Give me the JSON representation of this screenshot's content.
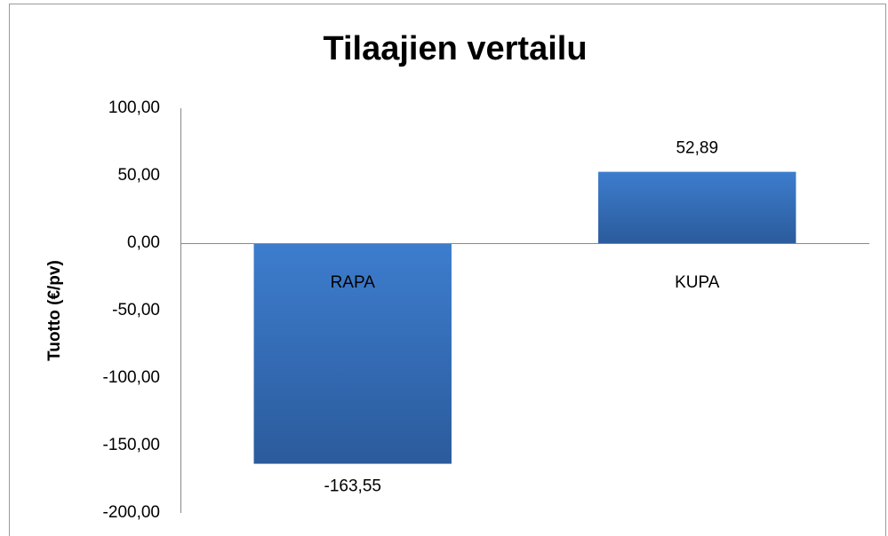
{
  "chart_data": {
    "type": "bar",
    "title": "Tilaajien vertailu",
    "y_label": "Tuotto (€/pv)",
    "categories": [
      "RAPA",
      "KUPA"
    ],
    "values": [
      -163.55,
      52.89
    ],
    "value_labels": [
      "-163,55",
      "52,89"
    ],
    "color": "#3d7dce",
    "ylim": [
      -200,
      100
    ],
    "yticks": [
      {
        "value": -200,
        "label": "-200,00"
      },
      {
        "value": -150,
        "label": "-150,00"
      },
      {
        "value": -100,
        "label": "-100,00"
      },
      {
        "value": -50,
        "label": "-50,00"
      },
      {
        "value": 0,
        "label": "0,00"
      },
      {
        "value": 50,
        "label": "50,00"
      },
      {
        "value": 100,
        "label": "100,00"
      }
    ],
    "grid": false
  }
}
